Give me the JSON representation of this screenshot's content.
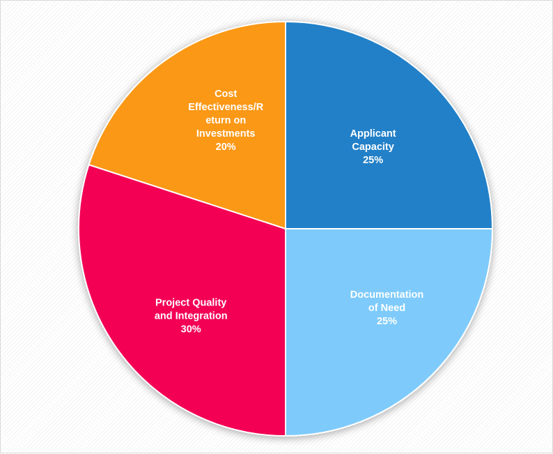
{
  "chart_data": {
    "type": "pie",
    "title": "",
    "start_angle": "12-o'clock",
    "direction": "clockwise",
    "slices": [
      {
        "name": "Applicant Capacity",
        "label_lines": [
          "Applicant",
          "Capacity"
        ],
        "value": 25,
        "value_label": "25%",
        "color": "#2280c8"
      },
      {
        "name": "Documentation of Need",
        "label_lines": [
          "Documentation",
          "of Need"
        ],
        "value": 25,
        "value_label": "25%",
        "color": "#7ecbfb"
      },
      {
        "name": "Project Quality and Integration",
        "label_lines": [
          "Project Quality",
          "and Integration"
        ],
        "value": 30,
        "value_label": "30%",
        "color": "#f30554"
      },
      {
        "name": "Cost Effectiveness/Return on Investments",
        "label_lines": [
          "Cost",
          "Effectiveness/R",
          "eturn on",
          "Investments"
        ],
        "value": 20,
        "value_label": "20%",
        "color": "#fb9815"
      }
    ],
    "legend": "none",
    "grid": false
  }
}
